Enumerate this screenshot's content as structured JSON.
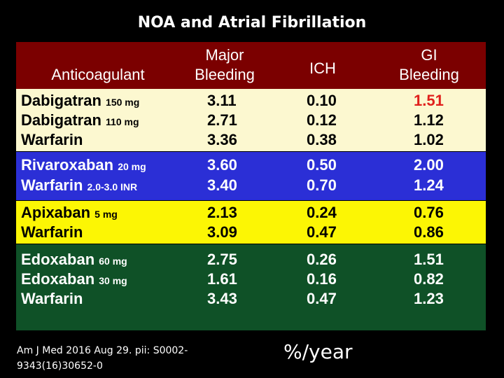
{
  "title": "NOA and Atrial Fibrillation",
  "header": {
    "anticoagulant": "Anticoagulant",
    "major_bleeding_line1": "Major",
    "major_bleeding_line2": "Bleeding",
    "ich": "ICH",
    "gi_bleeding_line1": "GI",
    "gi_bleeding_line2": "Bleeding"
  },
  "colors": {
    "header_bg": "#7b0000",
    "group_1_bg": "#fcf8d0",
    "group_2_bg": "#2b2fd6",
    "group_3_bg": "#fcf604",
    "group_4_bg": "#0f5127",
    "highlight": "#e0201c"
  },
  "groups": [
    {
      "rows": [
        {
          "drug": "Dabigatran",
          "dose": "150 mg",
          "major": "3.11",
          "ich": "0.10",
          "gi": "1.51"
        },
        {
          "drug": "Dabigatran",
          "dose": "110 mg",
          "major": "2.71",
          "ich": "0.12",
          "gi": "1.12"
        },
        {
          "drug": "Warfarin",
          "dose": "",
          "major": "3.36",
          "ich": "0.38",
          "gi": "1.02"
        }
      ]
    },
    {
      "rows": [
        {
          "drug": "Rivaroxaban",
          "dose": "20 mg",
          "major": "3.60",
          "ich": "0.50",
          "gi": "2.00"
        },
        {
          "drug": "Warfarin",
          "dose": "2.0-3.0 INR",
          "major": "3.40",
          "ich": "0.70",
          "gi": "1.24"
        }
      ]
    },
    {
      "rows": [
        {
          "drug": "Apixaban",
          "dose": "5 mg",
          "major": "2.13",
          "ich": "0.24",
          "gi": "0.76"
        },
        {
          "drug": "Warfarin",
          "dose": "",
          "major": "3.09",
          "ich": "0.47",
          "gi": "0.86"
        }
      ]
    },
    {
      "rows": [
        {
          "drug": "Edoxaban",
          "dose": "60 mg",
          "major": "2.75",
          "ich": "0.26",
          "gi": "1.51"
        },
        {
          "drug": "Edoxaban",
          "dose": "30 mg",
          "major": "1.61",
          "ich": "0.16",
          "gi": "0.82"
        },
        {
          "drug": "Warfarin",
          "dose": "",
          "major": "3.43",
          "ich": "0.47",
          "gi": "1.23"
        }
      ]
    }
  ],
  "footer": {
    "citation_line1": "Am J Med 2016 Aug 29. pii: S0002-",
    "citation_line2": "9343(16)30652-0",
    "unit": "%/year"
  }
}
